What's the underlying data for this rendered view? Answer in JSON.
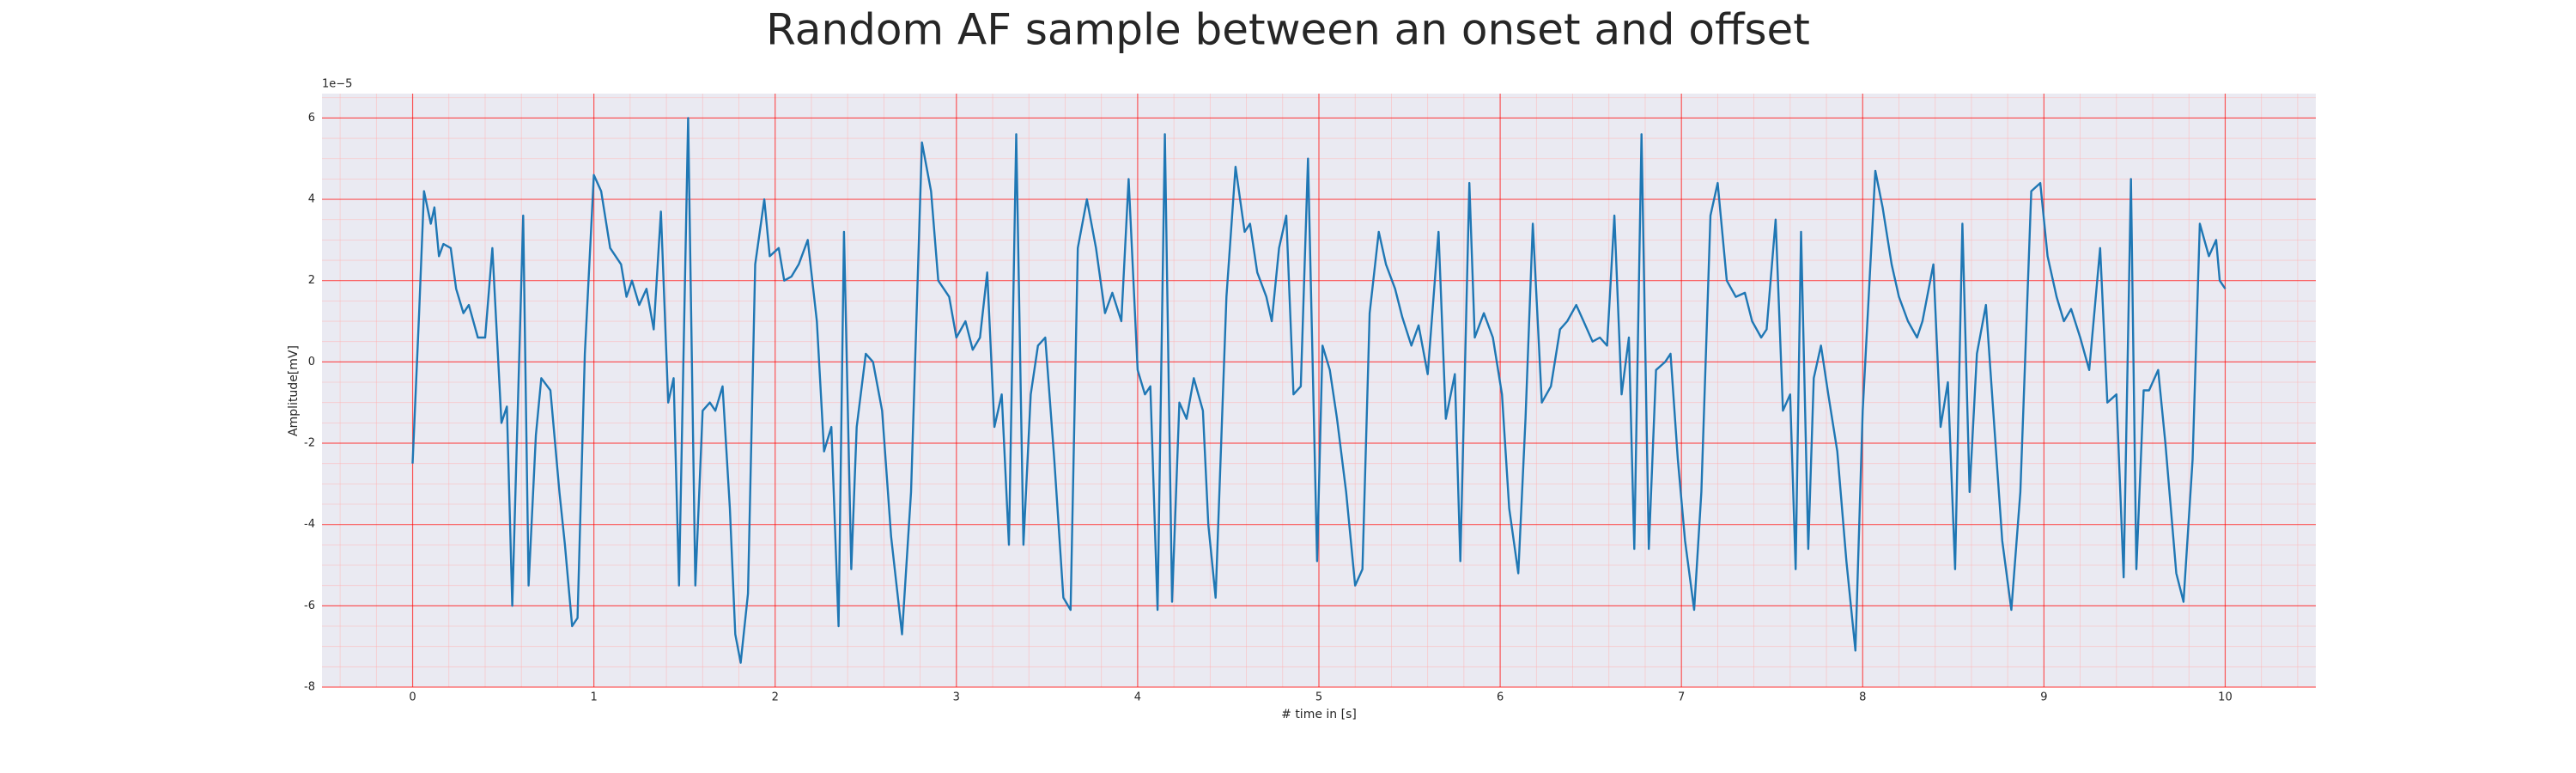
{
  "chart_data": {
    "type": "line",
    "title": "Random AF sample between an onset and offset",
    "x_label": "# time in [s]",
    "y_label": "Amplitude[mV]",
    "y_offset_label": "1e−5",
    "color": "#1f77b4",
    "grid": true,
    "minor_grid": true,
    "xlim": [
      -0.5,
      10.5
    ],
    "ylim": [
      -8,
      6.6
    ],
    "xticks": [
      0,
      1,
      2,
      3,
      4,
      5,
      6,
      7,
      8,
      9,
      10
    ],
    "yticks": [
      -8,
      -6,
      -4,
      -2,
      0,
      2,
      4,
      6
    ],
    "x": [
      0,
      0.036,
      0.063,
      0.1,
      0.12,
      0.145,
      0.17,
      0.21,
      0.24,
      0.28,
      0.31,
      0.36,
      0.4,
      0.44,
      0.49,
      0.52,
      0.55,
      0.61,
      0.64,
      0.68,
      0.71,
      0.76,
      0.81,
      0.84,
      0.88,
      0.91,
      0.95,
      1.0,
      1.04,
      1.09,
      1.15,
      1.18,
      1.21,
      1.25,
      1.29,
      1.33,
      1.37,
      1.41,
      1.44,
      1.47,
      1.52,
      1.56,
      1.6,
      1.64,
      1.67,
      1.71,
      1.75,
      1.78,
      1.81,
      1.85,
      1.89,
      1.94,
      1.97,
      2.02,
      2.05,
      2.09,
      2.13,
      2.18,
      2.23,
      2.27,
      2.31,
      2.35,
      2.38,
      2.42,
      2.45,
      2.5,
      2.54,
      2.59,
      2.64,
      2.7,
      2.75,
      2.81,
      2.86,
      2.9,
      2.96,
      3.0,
      3.05,
      3.09,
      3.13,
      3.17,
      3.21,
      3.25,
      3.29,
      3.33,
      3.37,
      3.41,
      3.45,
      3.49,
      3.54,
      3.59,
      3.63,
      3.67,
      3.72,
      3.77,
      3.82,
      3.86,
      3.91,
      3.95,
      4.0,
      4.04,
      4.07,
      4.11,
      4.15,
      4.19,
      4.23,
      4.27,
      4.31,
      4.36,
      4.39,
      4.43,
      4.49,
      4.54,
      4.59,
      4.62,
      4.66,
      4.71,
      4.74,
      4.78,
      4.82,
      4.86,
      4.9,
      4.94,
      4.99,
      5.02,
      5.06,
      5.1,
      5.15,
      5.2,
      5.24,
      5.28,
      5.33,
      5.37,
      5.42,
      5.46,
      5.51,
      5.55,
      5.6,
      5.66,
      5.7,
      5.75,
      5.78,
      5.83,
      5.86,
      5.91,
      5.96,
      6.01,
      6.05,
      6.1,
      6.14,
      6.18,
      6.23,
      6.28,
      6.33,
      6.37,
      6.42,
      6.46,
      6.51,
      6.55,
      6.59,
      6.63,
      6.67,
      6.71,
      6.74,
      6.78,
      6.82,
      6.86,
      6.91,
      6.94,
      6.98,
      7.02,
      7.07,
      7.11,
      7.16,
      7.2,
      7.25,
      7.3,
      7.35,
      7.39,
      7.44,
      7.47,
      7.52,
      7.56,
      7.6,
      7.63,
      7.66,
      7.7,
      7.73,
      7.77,
      7.81,
      7.86,
      7.91,
      7.96,
      8.0,
      8.07,
      8.11,
      8.16,
      8.2,
      8.25,
      8.3,
      8.33,
      8.39,
      8.43,
      8.47,
      8.51,
      8.55,
      8.59,
      8.63,
      8.68,
      8.72,
      8.77,
      8.82,
      8.87,
      8.93,
      8.98,
      9.02,
      9.07,
      9.11,
      9.15,
      9.2,
      9.25,
      9.31,
      9.35,
      9.4,
      9.44,
      9.48,
      9.51,
      9.55,
      9.58,
      9.63,
      9.67,
      9.73,
      9.77,
      9.82,
      9.86,
      9.91,
      9.95,
      9.97,
      10.0
    ],
    "values": [
      -2.5,
      1.2,
      4.2,
      3.4,
      3.8,
      2.6,
      2.9,
      2.8,
      1.8,
      1.2,
      1.4,
      0.6,
      0.6,
      2.8,
      -1.5,
      -1.1,
      -6,
      3.6,
      -5.5,
      -1.8,
      -0.4,
      -0.7,
      -3.2,
      -4.5,
      -6.5,
      -6.3,
      0.2,
      4.6,
      4.2,
      2.8,
      2.4,
      1.6,
      2,
      1.4,
      1.8,
      0.8,
      3.7,
      -1,
      -0.4,
      -5.5,
      6,
      -5.5,
      -1.2,
      -1,
      -1.2,
      -0.6,
      -3.6,
      -6.7,
      -7.4,
      -5.7,
      2.4,
      4,
      2.6,
      2.8,
      2,
      2.1,
      2.4,
      3,
      1,
      -2.2,
      -1.6,
      -6.5,
      3.2,
      -5.1,
      -1.6,
      0.2,
      0,
      -1.2,
      -4.3,
      -6.7,
      -3.2,
      5.4,
      4.2,
      2,
      1.6,
      0.6,
      1,
      0.3,
      0.6,
      2.2,
      -1.6,
      -0.8,
      -4.5,
      5.6,
      -4.5,
      -0.8,
      0.4,
      0.6,
      -2.4,
      -5.8,
      -6.1,
      2.8,
      4,
      2.8,
      1.2,
      1.7,
      1,
      4.5,
      -0.2,
      -0.8,
      -0.6,
      -6.1,
      5.6,
      -5.9,
      -1,
      -1.4,
      -0.4,
      -1.2,
      -4,
      -5.8,
      1.6,
      4.8,
      3.2,
      3.4,
      2.2,
      1.6,
      1,
      2.8,
      3.6,
      -0.8,
      -0.6,
      5,
      -4.9,
      0.4,
      -0.2,
      -1.4,
      -3.2,
      -5.5,
      -5.1,
      1.2,
      3.2,
      2.4,
      1.8,
      1.1,
      0.4,
      0.9,
      -0.3,
      3.2,
      -1.4,
      -0.3,
      -4.9,
      4.4,
      0.6,
      1.2,
      0.6,
      -0.8,
      -3.6,
      -5.2,
      -1.4,
      3.4,
      -1,
      -0.6,
      0.8,
      1,
      1.4,
      1,
      0.5,
      0.6,
      0.4,
      3.6,
      -0.8,
      0.6,
      -4.6,
      5.6,
      -4.6,
      -0.2,
      0,
      0.2,
      -2.4,
      -4.4,
      -6.1,
      -3.2,
      3.6,
      4.4,
      2,
      1.6,
      1.7,
      1,
      0.6,
      0.8,
      3.5,
      -1.2,
      -0.8,
      -5.1,
      3.2,
      -4.6,
      -0.4,
      0.4,
      -0.8,
      -2.2,
      -4.9,
      -7.1,
      -1.2,
      4.7,
      3.8,
      2.4,
      1.6,
      1,
      0.6,
      1,
      2.4,
      -1.6,
      -0.5,
      -5.1,
      3.4,
      -3.2,
      0.2,
      1.4,
      -1.2,
      -4.4,
      -6.1,
      -3.2,
      4.2,
      4.4,
      2.6,
      1.6,
      1,
      1.3,
      0.6,
      -0.2,
      2.8,
      -1,
      -0.8,
      -5.3,
      4.5,
      -5.1,
      -0.7,
      -0.7,
      -0.2,
      -2,
      -5.2,
      -5.9,
      -2.4,
      3.4,
      2.6,
      3,
      2,
      1.8
    ]
  }
}
